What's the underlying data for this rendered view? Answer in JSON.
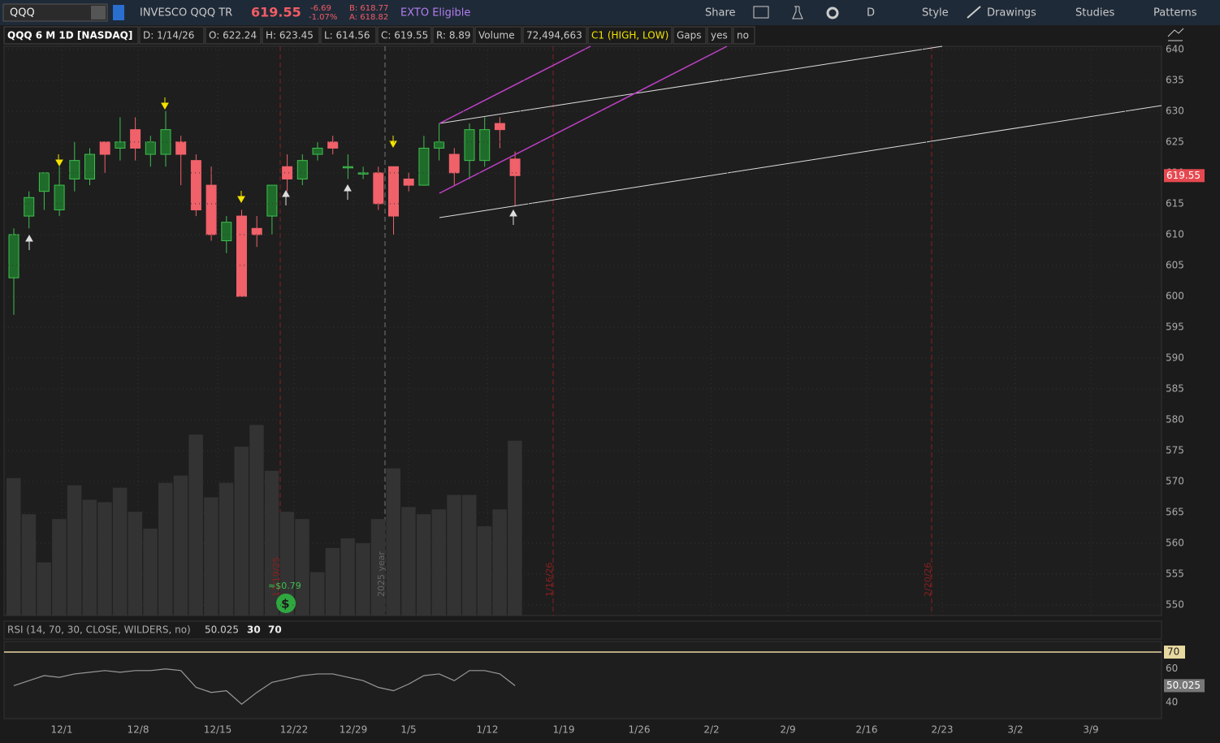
{
  "toolbar": {
    "symbol": "QQQ",
    "description": "INVESCO QQQ TR",
    "last": "619.55",
    "change": "-6.69",
    "change_pct": "-1.07%",
    "bid": "B: 618.77",
    "ask": "A: 618.82",
    "exto": "EXTO Eligible",
    "share": "Share",
    "period": "D",
    "style": "Style",
    "drawings": "Drawings",
    "studies": "Studies",
    "patterns": "Patterns"
  },
  "info_bar": {
    "items": [
      "QQQ 6 M 1D [NASDAQ]",
      "D: 1/14/26",
      "O: 622.24",
      "H: 623.45",
      "L: 614.56",
      "C: 619.55",
      "R: 8.89",
      "Volume",
      "72,494,663",
      "C1 (HIGH, LOW)",
      "Gaps",
      "yes",
      "no"
    ]
  },
  "annotations": {
    "dividend": "≈$0.79",
    "ex_date": "12/19/25",
    "year": "2025 year",
    "marker1": "1/16/26",
    "marker2": "2/20/26"
  },
  "x_axis_labels": [
    "12/1",
    "12/8",
    "12/15",
    "12/22",
    "12/29",
    "1/5",
    "1/12",
    "1/19",
    "1/26",
    "2/2",
    "2/9",
    "2/16",
    "2/23",
    "3/2",
    "3/9"
  ],
  "chart_data": [
    {
      "type": "candlestick",
      "ylim": [
        548.3,
        640.5
      ],
      "yticks": [
        640,
        635,
        630,
        625,
        620,
        615,
        610,
        605,
        600,
        595,
        590,
        585,
        580,
        575,
        570,
        565,
        560,
        555,
        550
      ],
      "last_label": "619.55",
      "open": [
        603,
        613,
        617,
        614,
        619,
        619,
        625,
        624,
        627,
        623,
        623,
        625,
        622,
        618,
        609,
        613,
        611,
        613,
        621,
        619,
        623,
        625,
        621,
        620,
        620,
        621,
        619,
        618,
        624,
        623,
        622,
        622,
        628,
        622.24
      ],
      "high": [
        611,
        617,
        620,
        621,
        625,
        624,
        625,
        629,
        629,
        626,
        630,
        626,
        623,
        621,
        613,
        614,
        613,
        618,
        623,
        623,
        625,
        626,
        623,
        621,
        621,
        621,
        620,
        626,
        628,
        624,
        628,
        629,
        629,
        623.45
      ],
      "low": [
        597,
        611,
        614,
        613,
        617,
        618,
        620,
        622,
        622,
        621,
        621,
        618,
        613,
        609,
        607,
        600,
        608,
        610,
        617,
        618,
        622,
        623,
        619,
        619,
        614,
        610,
        617,
        618,
        622,
        618,
        619,
        621,
        624,
        614.56
      ],
      "close": [
        610,
        616,
        620,
        618,
        622,
        623,
        623,
        625,
        624,
        625,
        627,
        623,
        614,
        610,
        612,
        600,
        610,
        618,
        619,
        622,
        624,
        624,
        621,
        620,
        615,
        613,
        618,
        624,
        625,
        620,
        627,
        627,
        627,
        619.55
      ],
      "volume": [
        57,
        42,
        22,
        40,
        54,
        48,
        47,
        53,
        43,
        36,
        55,
        58,
        75,
        49,
        55,
        70,
        79,
        60,
        43,
        40,
        18,
        28,
        32,
        30,
        40,
        61,
        45,
        42,
        44,
        50,
        50,
        37,
        44,
        72.49
      ],
      "volume_ylim": [
        0,
        236
      ]
    },
    {
      "type": "line",
      "title": "RSI (14, 70, 30, CLOSE, WILDERS, no)",
      "value_label": "50.025",
      "levels_labels": [
        "30",
        "70"
      ],
      "values": [
        50,
        53,
        56,
        55,
        57,
        58,
        59,
        58,
        59,
        59,
        60,
        59,
        49,
        46,
        47,
        39,
        46,
        52,
        54,
        56,
        57,
        57,
        55,
        53,
        49,
        47,
        51,
        56,
        57,
        53,
        59,
        59,
        57,
        50.025
      ],
      "ylim": [
        30.4,
        76.3
      ],
      "yticks": [
        70,
        60,
        40
      ],
      "overbought": 70,
      "overbought_label": "70"
    }
  ]
}
